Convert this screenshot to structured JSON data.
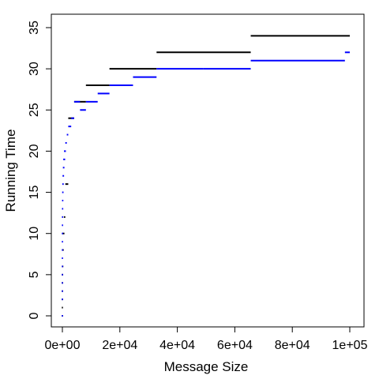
{
  "chart_data": {
    "type": "line",
    "style": "horizontal-step-segments",
    "title": "",
    "xlabel": "Message Size",
    "ylabel": "Running Time",
    "xlim": [
      0,
      100000
    ],
    "ylim": [
      0,
      35
    ],
    "x_ticks": [
      0,
      20000,
      40000,
      60000,
      80000,
      100000
    ],
    "x_tick_labels": [
      "0e+00",
      "2e+04",
      "4e+04",
      "6e+04",
      "8e+04",
      "1e+05"
    ],
    "y_ticks": [
      0,
      5,
      10,
      15,
      20,
      25,
      30,
      35
    ],
    "y_tick_labels": [
      "0",
      "5",
      "10",
      "15",
      "20",
      "25",
      "30",
      "35"
    ],
    "grid": false,
    "legend": "none",
    "series": [
      {
        "color": "#000000",
        "segments": [
          {
            "x0": 0,
            "x1": 0,
            "y": 0
          },
          {
            "x0": 2,
            "x1": 3,
            "y": 1
          },
          {
            "x0": 4,
            "x1": 7,
            "y": 2
          },
          {
            "x0": 8,
            "x1": 15,
            "y": 3
          },
          {
            "x0": 16,
            "x1": 31,
            "y": 4
          },
          {
            "x0": 32,
            "x1": 63,
            "y": 5
          },
          {
            "x0": 64,
            "x1": 127,
            "y": 6
          },
          {
            "x0": 128,
            "x1": 255,
            "y": 8
          },
          {
            "x0": 256,
            "x1": 511,
            "y": 10
          },
          {
            "x0": 512,
            "x1": 1023,
            "y": 12
          },
          {
            "x0": 1024,
            "x1": 2047,
            "y": 16
          },
          {
            "x0": 2048,
            "x1": 4095,
            "y": 24
          },
          {
            "x0": 4096,
            "x1": 8191,
            "y": 26
          },
          {
            "x0": 8192,
            "x1": 16383,
            "y": 28
          },
          {
            "x0": 16384,
            "x1": 32767,
            "y": 30
          },
          {
            "x0": 32768,
            "x1": 65535,
            "y": 32
          },
          {
            "x0": 65536,
            "x1": 100000,
            "y": 34
          }
        ]
      },
      {
        "color": "#0000ff",
        "segments": [
          {
            "x0": 0,
            "x1": 0,
            "y": 0
          },
          {
            "x0": 1,
            "x1": 1,
            "y": 2
          },
          {
            "x0": 2,
            "x1": 2,
            "y": 3
          },
          {
            "x0": 3,
            "x1": 3,
            "y": 4
          },
          {
            "x0": 4,
            "x1": 5,
            "y": 5
          },
          {
            "x0": 6,
            "x1": 7,
            "y": 6
          },
          {
            "x0": 8,
            "x1": 11,
            "y": 7
          },
          {
            "x0": 12,
            "x1": 15,
            "y": 8
          },
          {
            "x0": 16,
            "x1": 23,
            "y": 9
          },
          {
            "x0": 24,
            "x1": 31,
            "y": 10
          },
          {
            "x0": 32,
            "x1": 47,
            "y": 11
          },
          {
            "x0": 48,
            "x1": 63,
            "y": 12
          },
          {
            "x0": 64,
            "x1": 95,
            "y": 13
          },
          {
            "x0": 96,
            "x1": 127,
            "y": 14
          },
          {
            "x0": 128,
            "x1": 191,
            "y": 15
          },
          {
            "x0": 192,
            "x1": 255,
            "y": 16
          },
          {
            "x0": 256,
            "x1": 383,
            "y": 17
          },
          {
            "x0": 384,
            "x1": 511,
            "y": 18
          },
          {
            "x0": 512,
            "x1": 767,
            "y": 19
          },
          {
            "x0": 768,
            "x1": 1023,
            "y": 20
          },
          {
            "x0": 1024,
            "x1": 1535,
            "y": 21
          },
          {
            "x0": 1536,
            "x1": 2047,
            "y": 22
          },
          {
            "x0": 2048,
            "x1": 3071,
            "y": 23
          },
          {
            "x0": 3072,
            "x1": 4095,
            "y": 24
          },
          {
            "x0": 4096,
            "x1": 6143,
            "y": 26
          },
          {
            "x0": 6144,
            "x1": 8191,
            "y": 25
          },
          {
            "x0": 8192,
            "x1": 12287,
            "y": 26
          },
          {
            "x0": 12288,
            "x1": 16383,
            "y": 27
          },
          {
            "x0": 16384,
            "x1": 24575,
            "y": 28
          },
          {
            "x0": 24576,
            "x1": 32767,
            "y": 29
          },
          {
            "x0": 32768,
            "x1": 49151,
            "y": 30
          },
          {
            "x0": 49152,
            "x1": 65535,
            "y": 30
          },
          {
            "x0": 65536,
            "x1": 98303,
            "y": 31
          },
          {
            "x0": 98304,
            "x1": 100000,
            "y": 32
          }
        ]
      }
    ]
  }
}
